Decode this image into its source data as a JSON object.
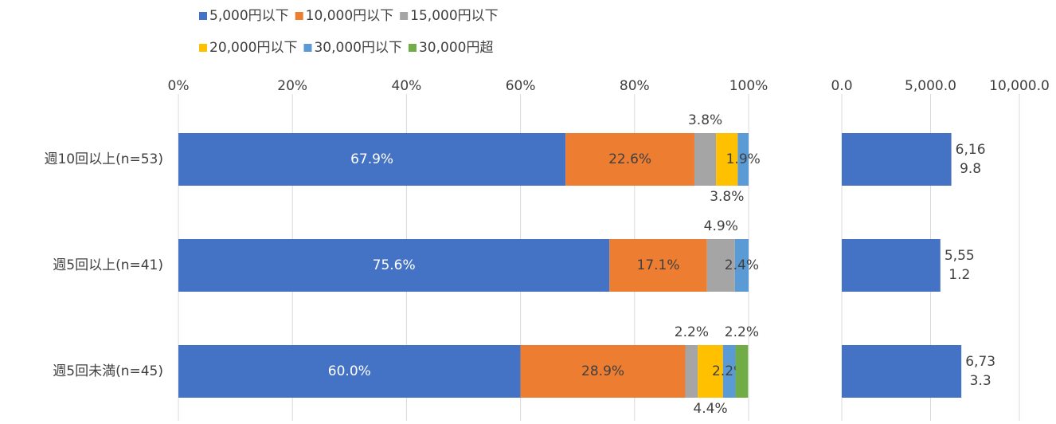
{
  "chart_data": [
    {
      "type": "stacked_bar_horizontal",
      "categories": [
        "週10回以上(n=53)",
        "週5回以上(n=41)",
        "週5回未満(n=45)"
      ],
      "series": [
        {
          "name": "5,000円以下",
          "color": "#4472c4",
          "values": [
            67.9,
            75.6,
            60.0
          ],
          "value_labels": [
            "67.9%",
            "75.6%",
            "60.0%"
          ]
        },
        {
          "name": "10,000円以下",
          "color": "#ed7d31",
          "values": [
            22.6,
            17.1,
            28.9
          ],
          "value_labels": [
            "22.6%",
            "17.1%",
            "28.9%"
          ]
        },
        {
          "name": "15,000円以下",
          "color": "#a5a5a5",
          "values": [
            3.8,
            4.9,
            2.2
          ],
          "value_labels": [
            "3.8%",
            "4.9%",
            "2.2%"
          ]
        },
        {
          "name": "20,000円以下",
          "color": "#ffc000",
          "values": [
            3.8,
            0,
            4.4
          ],
          "value_labels": [
            "3.8%",
            null,
            "4.4%"
          ]
        },
        {
          "name": "30,000円以下",
          "color": "#5b9bd5",
          "values": [
            1.9,
            2.4,
            2.2
          ],
          "value_labels": [
            "1.9%",
            "2.4%",
            "2.2%"
          ]
        },
        {
          "name": "30,000円超",
          "color": "#70ad47",
          "values": [
            0,
            0,
            2.2
          ],
          "value_labels": [
            null,
            null,
            "2.2%"
          ]
        }
      ],
      "xlim": [
        0,
        100
      ],
      "xticks": [
        {
          "value": 0,
          "label": "0%"
        },
        {
          "value": 20,
          "label": "20%"
        },
        {
          "value": 40,
          "label": "40%"
        },
        {
          "value": 60,
          "label": "60%"
        },
        {
          "value": 80,
          "label": "80%"
        },
        {
          "value": 100,
          "label": "100%"
        }
      ],
      "grid": true
    },
    {
      "type": "bar_horizontal",
      "values": [
        6169.8,
        5551.2,
        6733.3
      ],
      "value_labels": [
        "6,169.8",
        "5,551.2",
        "6,733.3"
      ],
      "color": "#4472c4",
      "xlim": [
        0,
        10000
      ],
      "xticks": [
        {
          "value": 0,
          "label": "0.0"
        },
        {
          "value": 5000,
          "label": "5,000.0"
        },
        {
          "value": 10000,
          "label": "10,000.0"
        }
      ],
      "grid": true
    }
  ]
}
